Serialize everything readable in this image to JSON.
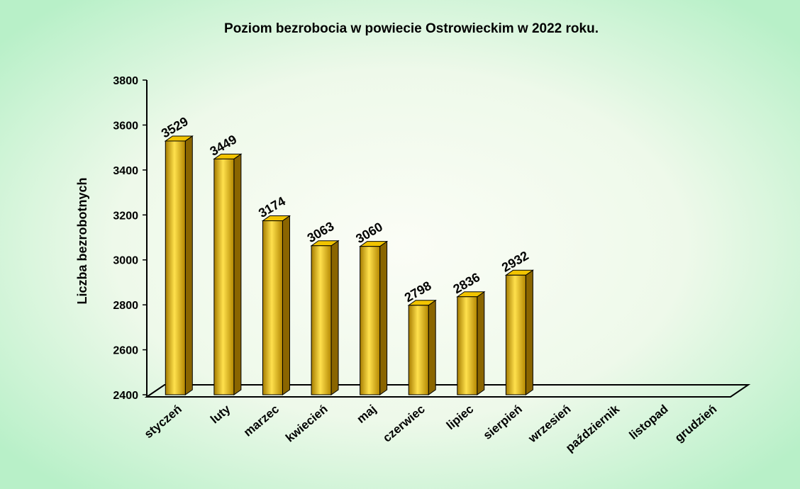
{
  "chart_data": {
    "type": "bar3d",
    "title": "Poziom bezrobocia w powiecie Ostrowieckim w 2022 roku.",
    "y_label": "Liczba bezrobotnych",
    "categories": [
      "styczeń",
      "luty",
      "marzec",
      "kwiecień",
      "maj",
      "czerwiec",
      "lipiec",
      "sierpień",
      "wrzesień",
      "październik",
      "listopad",
      "grudzień"
    ],
    "values": [
      3529,
      3449,
      3174,
      3063,
      3060,
      2798,
      2836,
      2932,
      null,
      null,
      null,
      null
    ],
    "color": "#e6b800",
    "ylim": [
      2400,
      3800
    ],
    "yticks": [
      2400,
      2600,
      2800,
      3000,
      3200,
      3400,
      3600,
      3800
    ]
  }
}
